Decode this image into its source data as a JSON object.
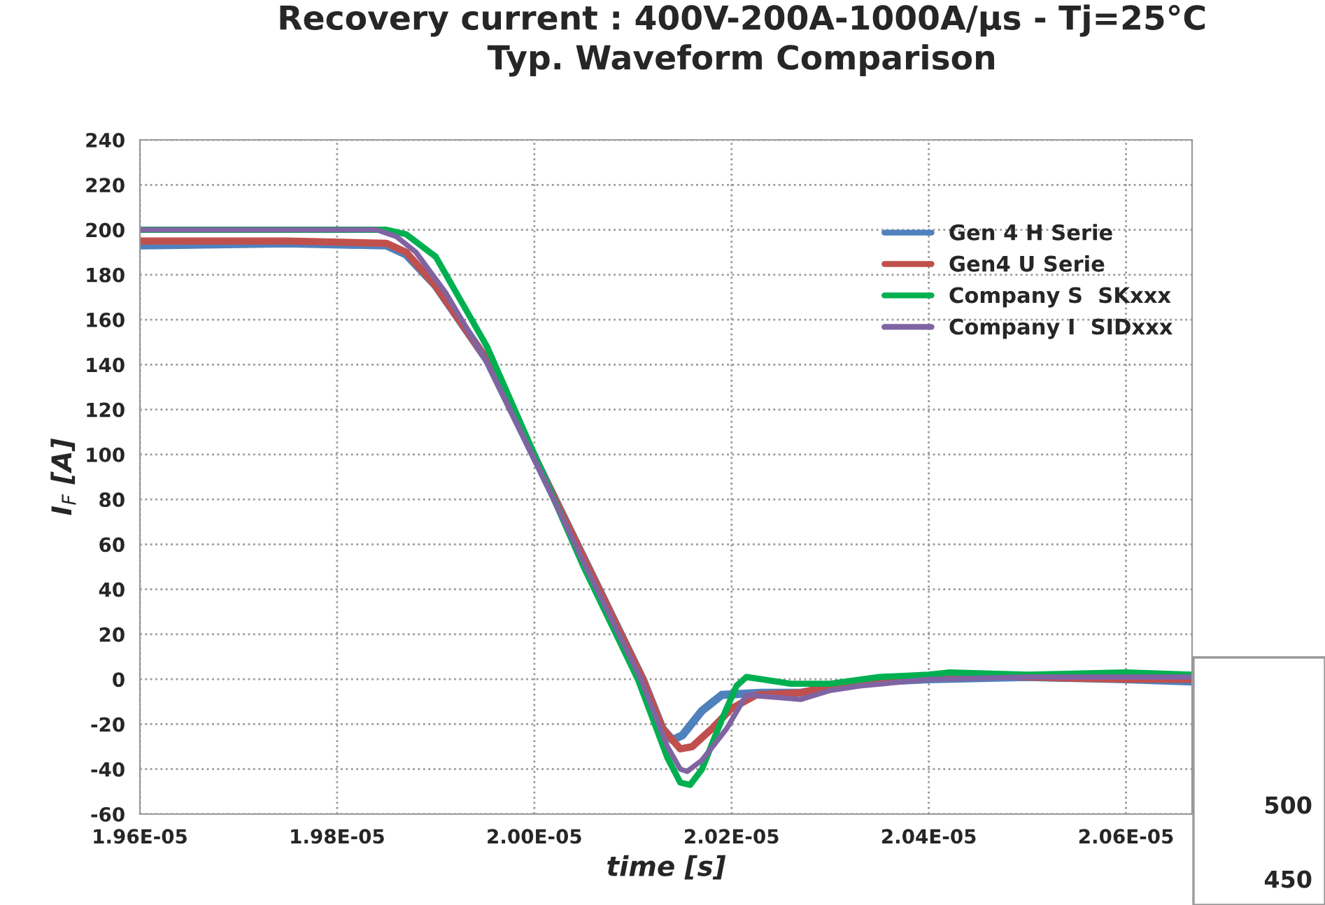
{
  "chart_data": {
    "type": "line",
    "title": "Recovery current : 400V-200A-1000A/µs - Tj=25°C\nTyp. Waveform Comparison",
    "xlabel": "time [s]",
    "ylabel": "I$_{F}$ [A]",
    "xlim": [
      1.96e-05,
      2.0667e-05
    ],
    "xticks": [
      {
        "value": 1.96e-05,
        "label": "1.96E-05"
      },
      {
        "value": 1.98e-05,
        "label": "1.98E-05"
      },
      {
        "value": 2e-05,
        "label": "2.00E-05"
      },
      {
        "value": 2.02e-05,
        "label": "2.02E-05"
      },
      {
        "value": 2.04e-05,
        "label": "2.04E-05"
      },
      {
        "value": 2.06e-05,
        "label": "2.06E-05"
      }
    ],
    "ylim": [
      -60,
      240
    ],
    "yticks": [
      -60,
      -40,
      -20,
      0,
      20,
      40,
      60,
      80,
      100,
      120,
      140,
      160,
      180,
      200,
      220,
      240
    ],
    "grid": true,
    "legend": "right",
    "marker": "none",
    "line_style": "solid",
    "series": [
      {
        "name": "Gen 4 H Serie",
        "color": "#4f81bd",
        "x": [
          1.96e-05,
          1.975e-05,
          1.985e-05,
          1.987e-05,
          1.99e-05,
          1.9952e-05,
          2e-05,
          2.005e-05,
          2.011e-05,
          2.013e-05,
          2.014e-05,
          2.015e-05,
          2.017e-05,
          2.019e-05,
          2.023e-05,
          2.027e-05,
          2.03e-05,
          2.035e-05,
          2.04e-05,
          2.05e-05,
          2.06e-05,
          2.0667e-05
        ],
        "values": [
          193,
          194,
          193,
          189,
          175,
          142,
          99,
          54,
          0,
          -22,
          -27,
          -25,
          -14,
          -7,
          -6,
          -6,
          -4,
          -1,
          0,
          1,
          0,
          -1
        ]
      },
      {
        "name": "Gen4 U Serie",
        "color": "#c0504d",
        "x": [
          1.96e-05,
          1.975e-05,
          1.985e-05,
          1.987e-05,
          1.99e-05,
          1.9952e-05,
          2e-05,
          2.005e-05,
          2.011e-05,
          2.013e-05,
          2.0148e-05,
          2.016e-05,
          2.018e-05,
          2.02e-05,
          2.0225e-05,
          2.027e-05,
          2.03e-05,
          2.035e-05,
          2.04e-05,
          2.045e-05,
          2.05e-05,
          2.06e-05,
          2.0667e-05
        ],
        "values": [
          195,
          195,
          194,
          190,
          175,
          142,
          99,
          54,
          0,
          -22,
          -31,
          -30,
          -22,
          -13,
          -7,
          -6,
          -3,
          0,
          1,
          2,
          1,
          0,
          0
        ]
      },
      {
        "name": "Company S  SKxxx",
        "color": "#00b050",
        "x": [
          1.96e-05,
          1.985e-05,
          1.987e-05,
          1.99e-05,
          1.9952e-05,
          2e-05,
          2.005e-05,
          2.0105e-05,
          2.0135e-05,
          2.0148e-05,
          2.0158e-05,
          2.017e-05,
          2.019e-05,
          2.0205e-05,
          2.0215e-05,
          2.023e-05,
          2.026e-05,
          2.03e-05,
          2.035e-05,
          2.04e-05,
          2.042e-05,
          2.05e-05,
          2.06e-05,
          2.0667e-05
        ],
        "values": [
          200,
          200,
          198,
          188,
          148,
          100,
          50,
          0,
          -35,
          -46,
          -47,
          -40,
          -18,
          -3,
          1,
          0,
          -2,
          -2,
          1,
          2,
          3,
          2,
          3,
          2
        ]
      },
      {
        "name": "Company I  SIDxxx",
        "color": "#8064a2",
        "x": [
          1.96e-05,
          1.984e-05,
          1.986e-05,
          1.988e-05,
          1.991e-05,
          1.9952e-05,
          2e-05,
          2.005e-05,
          2.0108e-05,
          2.0135e-05,
          2.0148e-05,
          2.0155e-05,
          2.017e-05,
          2.0195e-05,
          2.0215e-05,
          2.0245e-05,
          2.027e-05,
          2.03e-05,
          2.033e-05,
          2.04e-05,
          2.05e-05,
          2.06e-05,
          2.0667e-05
        ],
        "values": [
          200,
          200,
          197,
          190,
          172,
          141,
          98,
          52,
          0,
          -30,
          -40,
          -41,
          -36,
          -22,
          -7,
          -8,
          -9,
          -5,
          -3,
          0,
          1,
          1,
          1
        ]
      }
    ],
    "annotations": [
      "500",
      "450"
    ]
  }
}
